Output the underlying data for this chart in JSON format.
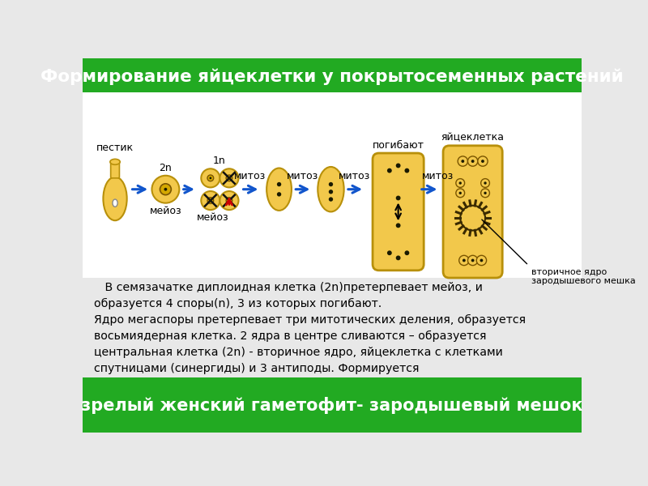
{
  "title": "Формирование яйцеклетки у покрытосеменных растений",
  "title_bg": "#22aa22",
  "title_color": "white",
  "bg_color": "#e8e8e8",
  "diagram_bg": "white",
  "cell_color": "#f2c84b",
  "cell_edge": "#b8900a",
  "body_text": "   В семязачатке диплоидная клетка (2n)претерпевает мейоз, и\nобразуется 4 споры(n), 3 из которых погибают.\nЯдро мегаспоры претерпевает три митотических деления, образуется\nвосьмиядерная клетка. 2 ядра в центре сливаются – образуется\nцентральная клетка (2n) - вторичное ядро, яйцеклетка с клетками\nспутницами (синергиды) и 3 антиподы. Формируется",
  "footer_text": "зрелый женский гаметофит- зародышевый мешок",
  "footer_bg": "#22aa22",
  "footer_color": "white",
  "arrow_color": "#1155cc",
  "red_arrow_color": "#cc0000",
  "label_pestik": "пестик",
  "label_2n": "2n",
  "label_1n": "1n",
  "label_meioz": "мейоз",
  "label_mitoz": "митоз",
  "label_pogibayut": "погибают",
  "label_yaycekletka": "яйцеклетка",
  "label_vtorichnoe": "вторичное ядро\nзародышевого мешка"
}
